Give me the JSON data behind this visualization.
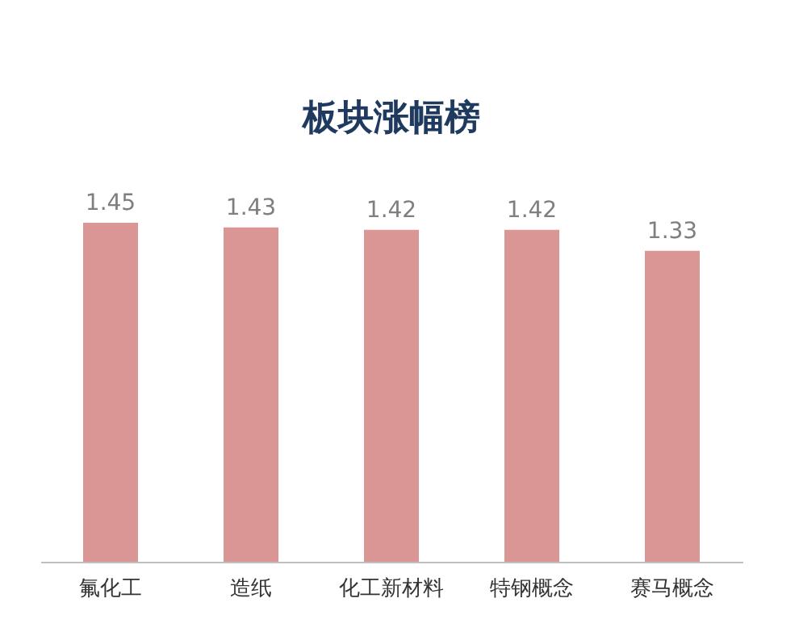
{
  "chart_data": {
    "type": "bar",
    "title": "板块涨幅榜",
    "categories": [
      "氟化工",
      "造纸",
      "化工新材料",
      "特钢概念",
      "赛马概念"
    ],
    "values": [
      1.45,
      1.43,
      1.42,
      1.42,
      1.33
    ],
    "color": "#d99694",
    "data_labels": true
  }
}
